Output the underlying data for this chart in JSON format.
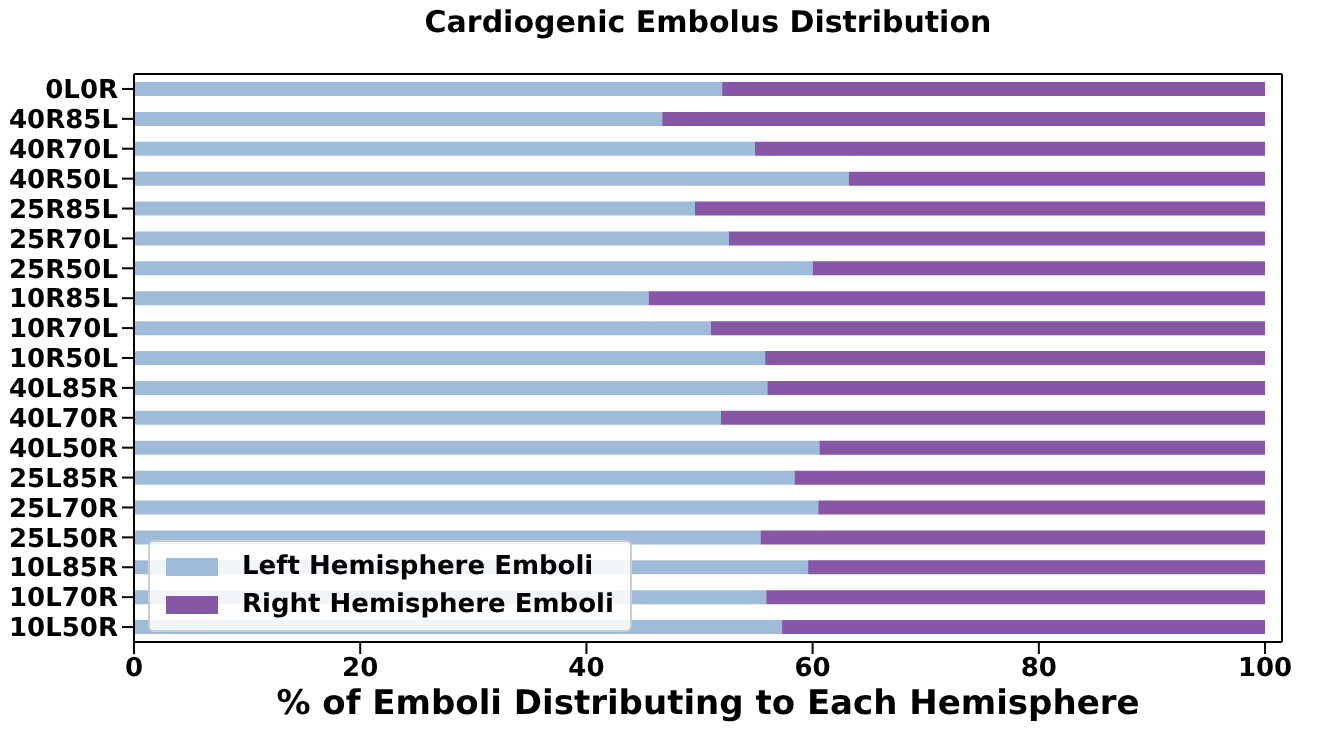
{
  "chart_data": {
    "type": "bar",
    "title": "Cardiogenic Embolus Distribution",
    "xlabel": "% of Emboli Distributing to Each Hemisphere",
    "categories": [
      "0L0R",
      "40R85L",
      "40R70L",
      "40R50L",
      "25R85L",
      "25R70L",
      "25R50L",
      "10R85L",
      "10R70L",
      "10R50L",
      "40L85R",
      "40L70R",
      "40L50R",
      "25L85R",
      "25L70R",
      "25L50R",
      "10L85R",
      "10L70R",
      "10L50R"
    ],
    "orientation": "horizontal",
    "stacked": true,
    "series": [
      {
        "name": "Left Hemisphere Emboli",
        "color": "#9ebcda",
        "values": [
          52.0,
          46.7,
          54.9,
          63.2,
          49.6,
          52.6,
          60.0,
          45.5,
          51.0,
          55.8,
          56.0,
          51.9,
          60.6,
          58.4,
          60.5,
          55.4,
          59.6,
          55.9,
          57.3
        ]
      },
      {
        "name": "Right Hemisphere Emboli",
        "color": "#8856a7",
        "values": [
          48.0,
          53.3,
          45.1,
          36.8,
          50.4,
          47.4,
          40.0,
          54.5,
          49.0,
          44.2,
          44.0,
          48.1,
          39.4,
          41.6,
          39.5,
          44.6,
          40.4,
          44.1,
          42.7
        ]
      }
    ],
    "xlim": [
      0,
      101.5
    ],
    "xticks": [
      0,
      20,
      40,
      60,
      80,
      100
    ],
    "grid": false,
    "legend": "bottom left"
  }
}
